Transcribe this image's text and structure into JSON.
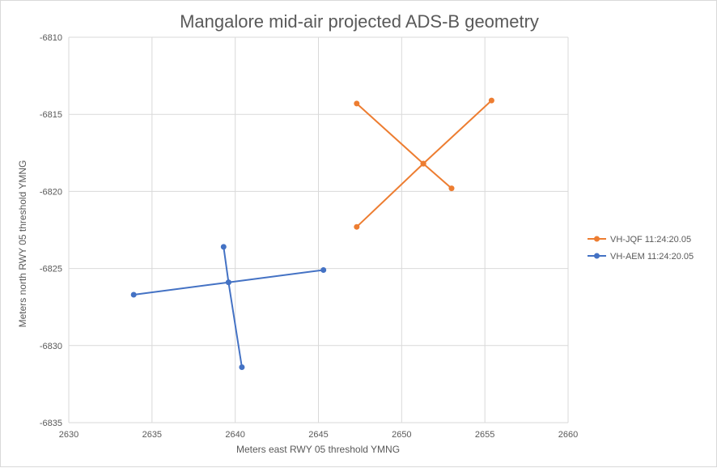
{
  "chart_data": {
    "type": "scatter",
    "title": "Mangalore mid-air projected ADS-B geometry",
    "xlabel": "Meters east RWY 05 threshold YMNG",
    "ylabel": "Meters north RWY 05 threshold YMNG",
    "xlim": [
      2630,
      2660
    ],
    "ylim": [
      -6835,
      -6810
    ],
    "x_ticks": [
      "2630",
      "2635",
      "2640",
      "2645",
      "2650",
      "2655",
      "2660"
    ],
    "y_ticks": [
      "-6810",
      "-6815",
      "-6820",
      "-6825",
      "-6830",
      "-6835"
    ],
    "grid": true,
    "legend_position": "right",
    "series": [
      {
        "name": "VH-JQF 11:24:20.05",
        "color": "#ED7D31",
        "segments": [
          [
            {
              "x": 2647.3,
              "y": -6814.3
            },
            {
              "x": 2651.3,
              "y": -6818.2
            },
            {
              "x": 2653.0,
              "y": -6819.8
            }
          ],
          [
            {
              "x": 2647.3,
              "y": -6822.3
            },
            {
              "x": 2651.3,
              "y": -6818.2
            },
            {
              "x": 2655.4,
              "y": -6814.1
            }
          ]
        ]
      },
      {
        "name": "VH-AEM 11:24:20.05",
        "color": "#4472C4",
        "segments": [
          [
            {
              "x": 2639.3,
              "y": -6823.6
            },
            {
              "x": 2639.6,
              "y": -6825.9
            },
            {
              "x": 2640.4,
              "y": -6831.4
            }
          ],
          [
            {
              "x": 2633.9,
              "y": -6826.7
            },
            {
              "x": 2639.6,
              "y": -6825.9
            },
            {
              "x": 2645.3,
              "y": -6825.1
            }
          ]
        ]
      }
    ]
  }
}
